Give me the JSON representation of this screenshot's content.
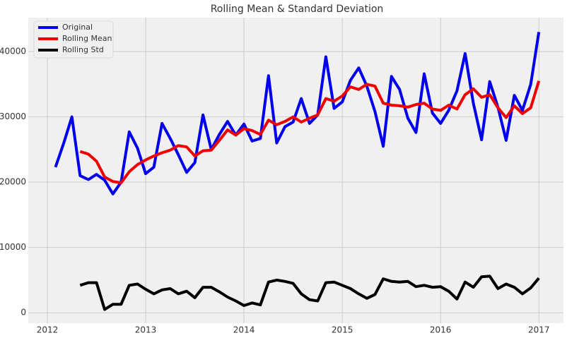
{
  "chart_data": {
    "type": "line",
    "title": "Rolling Mean & Standard Deviation",
    "x": [
      2012.083,
      2012.167,
      2012.25,
      2012.333,
      2012.417,
      2012.5,
      2012.583,
      2012.667,
      2012.75,
      2012.833,
      2012.917,
      2013,
      2013.083,
      2013.167,
      2013.25,
      2013.333,
      2013.417,
      2013.5,
      2013.583,
      2013.667,
      2013.75,
      2013.833,
      2013.917,
      2014,
      2014.083,
      2014.167,
      2014.25,
      2014.333,
      2014.417,
      2014.5,
      2014.583,
      2014.667,
      2014.75,
      2014.833,
      2014.917,
      2015,
      2015.083,
      2015.167,
      2015.25,
      2015.333,
      2015.417,
      2015.5,
      2015.583,
      2015.667,
      2015.75,
      2015.833,
      2015.917,
      2016,
      2016.083,
      2016.167,
      2016.25,
      2016.333,
      2016.417,
      2016.5,
      2016.583,
      2016.667,
      2016.75,
      2016.833,
      2016.917,
      2017
    ],
    "series": [
      {
        "name": "Original",
        "color": "#0000ee",
        "values": [
          22300,
          26000,
          30000,
          21000,
          20400,
          21200,
          20300,
          18200,
          20000,
          27700,
          25200,
          21300,
          22300,
          29000,
          26700,
          24200,
          21500,
          23000,
          30300,
          25000,
          27300,
          29300,
          27200,
          28900,
          26300,
          26700,
          36300,
          26000,
          28500,
          29200,
          32800,
          29000,
          30300,
          39200,
          31300,
          32300,
          35600,
          37500,
          34700,
          30800,
          25500,
          36200,
          34200,
          29800,
          27600,
          36600,
          30600,
          29000,
          31000,
          34000,
          39700,
          32100,
          26500,
          35400,
          31500,
          26400,
          33300,
          31000,
          35000,
          43000
        ]
      },
      {
        "name": "Rolling Mean",
        "color": "#ee0000",
        "values": [
          null,
          null,
          null,
          24700,
          24300,
          23200,
          20800,
          20100,
          19900,
          21600,
          22700,
          23400,
          24000,
          24500,
          24900,
          25600,
          25400,
          24000,
          24800,
          24900,
          26400,
          28000,
          27200,
          28200,
          27900,
          27300,
          29500,
          28800,
          29300,
          30000,
          29200,
          29800,
          30300,
          32800,
          32400,
          33200,
          34600,
          34200,
          35000,
          34700,
          32100,
          31800,
          31700,
          31500,
          31900,
          32100,
          31200,
          31000,
          31800,
          31200,
          33400,
          34300,
          33000,
          33400,
          31400,
          29900,
          31700,
          30500,
          31400,
          35500
        ]
      },
      {
        "name": "Rolling Std",
        "color": "#000000",
        "values": [
          null,
          null,
          null,
          4200,
          4600,
          4600,
          500,
          1300,
          1300,
          4200,
          4400,
          3600,
          2900,
          3500,
          3700,
          2900,
          3300,
          2300,
          3900,
          3900,
          3200,
          2400,
          1800,
          1100,
          1500,
          1200,
          4700,
          5000,
          4800,
          4500,
          2900,
          2000,
          1800,
          4600,
          4700,
          4200,
          3700,
          2900,
          2200,
          2800,
          5200,
          4800,
          4700,
          4800,
          4000,
          4200,
          3900,
          4000,
          3300,
          2100,
          4700,
          3900,
          5500,
          5600,
          3700,
          4400,
          3900,
          2900,
          3800,
          5300
        ]
      }
    ],
    "xlim": [
      2011.806,
      2017.25
    ],
    "xticks": [
      2012,
      2013,
      2014,
      2015,
      2016,
      2017
    ],
    "ylim": [
      -1600,
      45200
    ],
    "yticks": [
      0,
      10000,
      20000,
      30000,
      40000
    ],
    "grid": true,
    "legend": "upper left"
  }
}
